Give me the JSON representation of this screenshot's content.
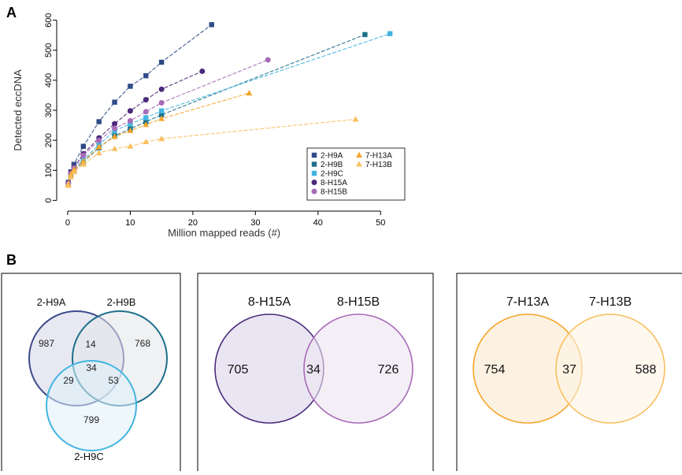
{
  "panel_a_label": "A",
  "panel_b_label": "B",
  "chart_data": [
    {
      "type": "line",
      "xlabel": "Million mapped reads (#)",
      "ylabel": "Detected eccDNA",
      "xlim": [
        -1,
        55
      ],
      "ylim": [
        -20,
        620
      ],
      "x_ticks": [
        "0",
        "10",
        "20",
        "30",
        "40",
        "50"
      ],
      "y_ticks": [
        "0",
        "100",
        "200",
        "300",
        "400",
        "500",
        "600"
      ],
      "legend_position": "bottom-right",
      "series": [
        {
          "name": "2-H9A",
          "color": "#2e4a86",
          "marker": "square",
          "x": [
            0.1,
            0.5,
            1.0,
            2.5,
            5.0,
            7.5,
            10.0,
            12.5,
            15.0,
            23.0
          ],
          "y": [
            60,
            95,
            120,
            180,
            262,
            327,
            380,
            415,
            460,
            585
          ]
        },
        {
          "name": "2-H9B",
          "color": "#1d6f8a",
          "marker": "square",
          "x": [
            0.1,
            0.5,
            1.0,
            2.5,
            5.0,
            7.5,
            10.0,
            12.5,
            15.0,
            47.5
          ],
          "y": [
            52,
            85,
            100,
            128,
            175,
            215,
            238,
            262,
            285,
            552
          ]
        },
        {
          "name": "2-H9C",
          "color": "#41b4e0",
          "marker": "square",
          "x": [
            0.1,
            0.5,
            1.0,
            2.5,
            5.0,
            7.5,
            10.0,
            12.5,
            15.0,
            51.5
          ],
          "y": [
            55,
            88,
            105,
            135,
            185,
            232,
            255,
            275,
            298,
            555
          ]
        },
        {
          "name": "8-H15A",
          "color": "#4b2a7b",
          "marker": "circle",
          "x": [
            0.1,
            0.5,
            1.0,
            2.5,
            5.0,
            7.5,
            10.0,
            12.5,
            15.0,
            21.5
          ],
          "y": [
            58,
            92,
            110,
            155,
            208,
            255,
            298,
            335,
            370,
            430
          ]
        },
        {
          "name": "8-H15B",
          "color": "#a86bb8",
          "marker": "circle",
          "x": [
            0.1,
            0.5,
            1.0,
            2.5,
            5.0,
            7.5,
            10.0,
            12.5,
            15.0,
            32.0
          ],
          "y": [
            56,
            90,
            108,
            150,
            200,
            240,
            265,
            295,
            325,
            468
          ]
        },
        {
          "name": "7-H13A",
          "color": "#f4a62a",
          "marker": "triangle",
          "x": [
            0.1,
            0.5,
            1.0,
            2.5,
            5.0,
            7.5,
            10.0,
            12.5,
            15.0,
            29.0
          ],
          "y": [
            54,
            86,
            102,
            130,
            178,
            212,
            232,
            252,
            272,
            357
          ]
        },
        {
          "name": "7-H13B",
          "color": "#f8c060",
          "marker": "triangle",
          "x": [
            0.1,
            0.5,
            1.0,
            2.5,
            5.0,
            7.5,
            10.0,
            12.5,
            15.0,
            46.0
          ],
          "y": [
            50,
            78,
            95,
            120,
            158,
            172,
            180,
            195,
            205,
            270
          ]
        }
      ]
    },
    {
      "type": "venn",
      "sets": [
        {
          "name": "2-H9A",
          "only": "987"
        },
        {
          "name": "2-H9B",
          "only": "768"
        },
        {
          "name": "2-H9C",
          "only": "799"
        }
      ],
      "intersections": {
        "AB": "14",
        "AC": "29",
        "BC": "53",
        "ABC": "34"
      }
    },
    {
      "type": "venn",
      "sets": [
        {
          "name": "8-H15A",
          "only": "705"
        },
        {
          "name": "8-H15B",
          "only": "726"
        }
      ],
      "intersections": {
        "AB": "34"
      }
    },
    {
      "type": "venn",
      "sets": [
        {
          "name": "7-H13A",
          "only": "754"
        },
        {
          "name": "7-H13B",
          "only": "588"
        }
      ],
      "intersections": {
        "AB": "37"
      }
    }
  ]
}
